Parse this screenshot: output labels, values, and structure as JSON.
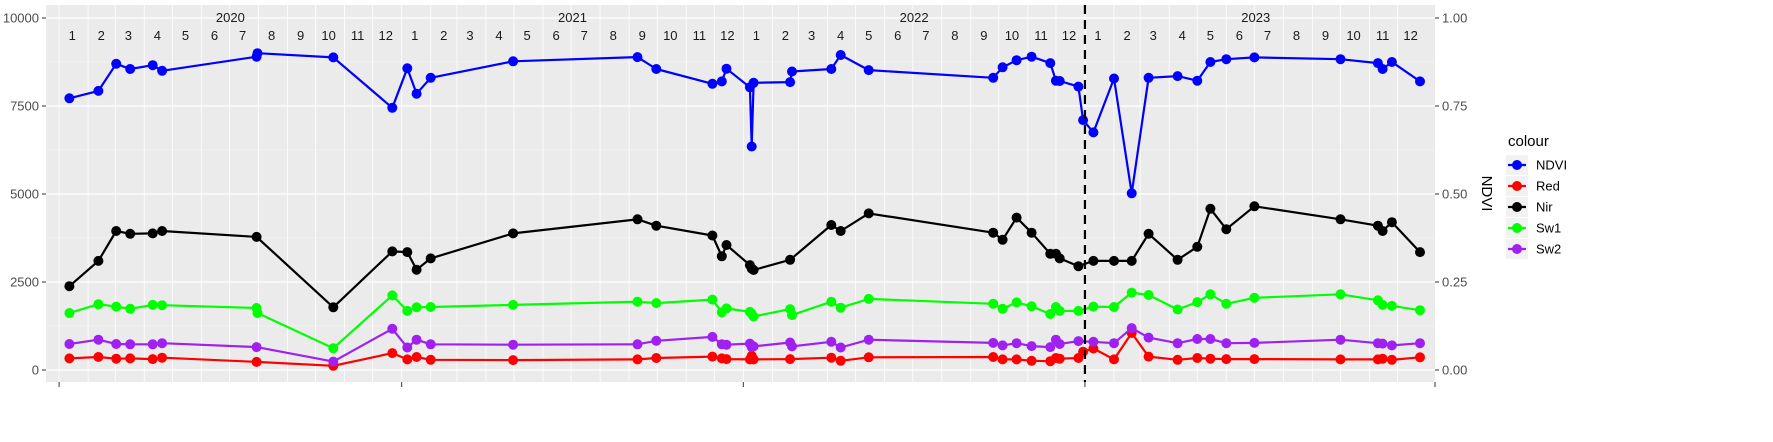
{
  "chart_data": {
    "type": "line",
    "title": "",
    "xlabel": "",
    "ylabel": "",
    "y2label": "NDVI",
    "ylim": [
      0,
      10000
    ],
    "y2lim": [
      0,
      1
    ],
    "yticks": [
      0,
      2500,
      5000,
      7500,
      10000
    ],
    "y2ticks": [
      "0.00",
      "0.25",
      "0.50",
      "0.75",
      "1.00"
    ],
    "xlim": [
      "2019-12-18",
      "2024-01-10"
    ],
    "grid": true,
    "legend_position": "right",
    "legend_title": "colour",
    "years": [
      {
        "label": "2020",
        "start": "2020-01-01",
        "end": "2021-01-01"
      },
      {
        "label": "2021",
        "start": "2021-01-01",
        "end": "2022-01-01"
      },
      {
        "label": "2022",
        "start": "2022-01-01",
        "end": "2023-01-01"
      },
      {
        "label": "2023",
        "start": "2023-01-01",
        "end": "2024-01-01"
      }
    ],
    "month_labels": [
      "1",
      "2",
      "3",
      "4",
      "5",
      "6",
      "7",
      "8",
      "9",
      "10",
      "11",
      "12"
    ],
    "vline": "2023-01-01",
    "series": [
      {
        "name": "NDVI",
        "color": "#0000ff",
        "axis": "right",
        "points": [
          [
            "2020-01-12",
            0.772
          ],
          [
            "2020-02-12",
            0.793
          ],
          [
            "2020-03-02",
            0.87
          ],
          [
            "2020-03-17",
            0.855
          ],
          [
            "2020-04-10",
            0.866
          ],
          [
            "2020-04-20",
            0.85
          ],
          [
            "2020-07-30",
            0.89
          ],
          [
            "2020-07-31",
            0.9
          ],
          [
            "2020-10-20",
            0.888
          ],
          [
            "2020-12-22",
            0.745
          ],
          [
            "2021-01-07",
            0.857
          ],
          [
            "2021-01-17",
            0.785
          ],
          [
            "2021-02-01",
            0.83
          ],
          [
            "2021-04-30",
            0.877
          ],
          [
            "2021-09-10",
            0.889
          ],
          [
            "2021-09-30",
            0.855
          ],
          [
            "2021-11-29",
            0.813
          ],
          [
            "2021-12-09",
            0.82
          ],
          [
            "2021-12-14",
            0.856
          ],
          [
            "2022-01-08",
            0.803
          ],
          [
            "2022-01-10",
            0.635
          ],
          [
            "2022-01-12",
            0.816
          ],
          [
            "2022-02-20",
            0.818
          ],
          [
            "2022-02-22",
            0.848
          ],
          [
            "2022-04-05",
            0.855
          ],
          [
            "2022-04-15",
            0.895
          ],
          [
            "2022-05-15",
            0.852
          ],
          [
            "2022-09-25",
            0.83
          ],
          [
            "2022-10-05",
            0.86
          ],
          [
            "2022-10-20",
            0.88
          ],
          [
            "2022-11-05",
            0.89
          ],
          [
            "2022-11-25",
            0.872
          ],
          [
            "2022-12-01",
            0.822
          ],
          [
            "2022-12-05",
            0.821
          ],
          [
            "2022-12-25",
            0.805
          ],
          [
            "2022-12-30",
            0.71
          ],
          [
            "2023-01-10",
            0.675
          ],
          [
            "2023-02-01",
            0.828
          ],
          [
            "2023-02-20",
            0.502
          ],
          [
            "2023-03-10",
            0.83
          ],
          [
            "2023-04-10",
            0.835
          ],
          [
            "2023-05-01",
            0.822
          ],
          [
            "2023-05-15",
            0.875
          ],
          [
            "2023-06-01",
            0.883
          ],
          [
            "2023-07-01",
            0.888
          ],
          [
            "2023-10-01",
            0.883
          ],
          [
            "2023-11-10",
            0.872
          ],
          [
            "2023-11-15",
            0.855
          ],
          [
            "2023-11-25",
            0.875
          ],
          [
            "2023-12-25",
            0.82
          ]
        ]
      },
      {
        "name": "Red",
        "color": "#ff0000",
        "axis": "left",
        "points": [
          [
            "2020-01-12",
            330
          ],
          [
            "2020-02-12",
            370
          ],
          [
            "2020-03-02",
            320
          ],
          [
            "2020-03-17",
            330
          ],
          [
            "2020-04-10",
            310
          ],
          [
            "2020-04-20",
            350
          ],
          [
            "2020-07-30",
            230
          ],
          [
            "2020-10-20",
            120
          ],
          [
            "2020-12-22",
            480
          ],
          [
            "2021-01-07",
            300
          ],
          [
            "2021-01-17",
            370
          ],
          [
            "2021-02-01",
            290
          ],
          [
            "2021-04-30",
            280
          ],
          [
            "2021-09-10",
            300
          ],
          [
            "2021-09-30",
            340
          ],
          [
            "2021-11-29",
            380
          ],
          [
            "2021-12-09",
            330
          ],
          [
            "2021-12-14",
            310
          ],
          [
            "2022-01-08",
            300
          ],
          [
            "2022-01-10",
            400
          ],
          [
            "2022-01-12",
            300
          ],
          [
            "2022-02-20",
            310
          ],
          [
            "2022-04-05",
            350
          ],
          [
            "2022-04-15",
            260
          ],
          [
            "2022-05-15",
            360
          ],
          [
            "2022-09-25",
            370
          ],
          [
            "2022-10-05",
            300
          ],
          [
            "2022-10-20",
            300
          ],
          [
            "2022-11-05",
            260
          ],
          [
            "2022-11-25",
            250
          ],
          [
            "2022-12-01",
            340
          ],
          [
            "2022-12-05",
            320
          ],
          [
            "2022-12-25",
            340
          ],
          [
            "2022-12-30",
            520
          ],
          [
            "2023-01-10",
            610
          ],
          [
            "2023-02-01",
            300
          ],
          [
            "2023-02-20",
            1050
          ],
          [
            "2023-03-10",
            380
          ],
          [
            "2023-04-10",
            290
          ],
          [
            "2023-05-01",
            340
          ],
          [
            "2023-05-15",
            320
          ],
          [
            "2023-06-01",
            310
          ],
          [
            "2023-07-01",
            310
          ],
          [
            "2023-10-01",
            300
          ],
          [
            "2023-11-10",
            300
          ],
          [
            "2023-11-15",
            320
          ],
          [
            "2023-11-25",
            290
          ],
          [
            "2023-12-25",
            360
          ]
        ]
      },
      {
        "name": "Nir",
        "color": "#000000",
        "axis": "left",
        "points": [
          [
            "2020-01-12",
            2380
          ],
          [
            "2020-02-12",
            3100
          ],
          [
            "2020-03-02",
            3950
          ],
          [
            "2020-03-17",
            3870
          ],
          [
            "2020-04-10",
            3880
          ],
          [
            "2020-04-20",
            3950
          ],
          [
            "2020-07-30",
            3780
          ],
          [
            "2020-10-20",
            1780
          ],
          [
            "2020-12-22",
            3370
          ],
          [
            "2021-01-07",
            3350
          ],
          [
            "2021-01-17",
            2850
          ],
          [
            "2021-02-01",
            3170
          ],
          [
            "2021-04-30",
            3880
          ],
          [
            "2021-09-10",
            4280
          ],
          [
            "2021-09-30",
            4100
          ],
          [
            "2021-11-29",
            3820
          ],
          [
            "2021-12-09",
            3230
          ],
          [
            "2021-12-14",
            3550
          ],
          [
            "2022-01-08",
            2980
          ],
          [
            "2022-01-10",
            2880
          ],
          [
            "2022-01-12",
            2840
          ],
          [
            "2022-02-20",
            3130
          ],
          [
            "2022-04-05",
            4120
          ],
          [
            "2022-04-15",
            3950
          ],
          [
            "2022-05-15",
            4450
          ],
          [
            "2022-09-25",
            3900
          ],
          [
            "2022-10-05",
            3700
          ],
          [
            "2022-10-20",
            4330
          ],
          [
            "2022-11-05",
            3900
          ],
          [
            "2022-11-25",
            3300
          ],
          [
            "2022-12-01",
            3300
          ],
          [
            "2022-12-05",
            3170
          ],
          [
            "2022-12-25",
            2950
          ],
          [
            "2023-01-10",
            3100
          ],
          [
            "2023-02-01",
            3100
          ],
          [
            "2023-02-20",
            3100
          ],
          [
            "2023-03-10",
            3870
          ],
          [
            "2023-04-10",
            3130
          ],
          [
            "2023-05-01",
            3500
          ],
          [
            "2023-05-15",
            4580
          ],
          [
            "2023-06-01",
            4000
          ],
          [
            "2023-07-01",
            4650
          ],
          [
            "2023-10-01",
            4280
          ],
          [
            "2023-11-10",
            4100
          ],
          [
            "2023-11-15",
            3950
          ],
          [
            "2023-11-25",
            4200
          ],
          [
            "2023-12-25",
            3350
          ]
        ]
      },
      {
        "name": "Sw1",
        "color": "#00ff00",
        "axis": "left",
        "points": [
          [
            "2020-01-12",
            1620
          ],
          [
            "2020-02-12",
            1870
          ],
          [
            "2020-03-02",
            1800
          ],
          [
            "2020-03-17",
            1740
          ],
          [
            "2020-04-10",
            1850
          ],
          [
            "2020-04-20",
            1840
          ],
          [
            "2020-07-30",
            1760
          ],
          [
            "2020-07-31",
            1620
          ],
          [
            "2020-10-20",
            620
          ],
          [
            "2020-12-22",
            2120
          ],
          [
            "2021-01-07",
            1680
          ],
          [
            "2021-01-17",
            1780
          ],
          [
            "2021-02-01",
            1790
          ],
          [
            "2021-04-30",
            1850
          ],
          [
            "2021-09-10",
            1940
          ],
          [
            "2021-09-30",
            1900
          ],
          [
            "2021-11-29",
            2000
          ],
          [
            "2021-12-09",
            1640
          ],
          [
            "2021-12-14",
            1750
          ],
          [
            "2022-01-08",
            1650
          ],
          [
            "2022-01-10",
            1600
          ],
          [
            "2022-01-12",
            1520
          ],
          [
            "2022-02-20",
            1730
          ],
          [
            "2022-02-22",
            1560
          ],
          [
            "2022-04-05",
            1940
          ],
          [
            "2022-04-15",
            1770
          ],
          [
            "2022-05-15",
            2020
          ],
          [
            "2022-09-25",
            1880
          ],
          [
            "2022-10-05",
            1740
          ],
          [
            "2022-10-20",
            1920
          ],
          [
            "2022-11-05",
            1810
          ],
          [
            "2022-11-25",
            1590
          ],
          [
            "2022-12-01",
            1790
          ],
          [
            "2022-12-05",
            1680
          ],
          [
            "2022-12-25",
            1680
          ],
          [
            "2023-01-10",
            1800
          ],
          [
            "2023-02-01",
            1790
          ],
          [
            "2023-02-20",
            2200
          ],
          [
            "2023-03-10",
            2130
          ],
          [
            "2023-04-10",
            1720
          ],
          [
            "2023-05-01",
            1930
          ],
          [
            "2023-05-15",
            2150
          ],
          [
            "2023-06-01",
            1880
          ],
          [
            "2023-07-01",
            2050
          ],
          [
            "2023-10-01",
            2150
          ],
          [
            "2023-11-10",
            1980
          ],
          [
            "2023-11-15",
            1850
          ],
          [
            "2023-11-25",
            1820
          ],
          [
            "2023-12-25",
            1700
          ]
        ]
      },
      {
        "name": "Sw2",
        "color": "#a020f0",
        "axis": "left",
        "points": [
          [
            "2020-01-12",
            740
          ],
          [
            "2020-02-12",
            860
          ],
          [
            "2020-03-02",
            740
          ],
          [
            "2020-03-17",
            730
          ],
          [
            "2020-04-10",
            730
          ],
          [
            "2020-04-20",
            760
          ],
          [
            "2020-07-30",
            650
          ],
          [
            "2020-10-20",
            240
          ],
          [
            "2020-12-22",
            1170
          ],
          [
            "2021-01-07",
            640
          ],
          [
            "2021-01-17",
            860
          ],
          [
            "2021-02-01",
            730
          ],
          [
            "2021-04-30",
            720
          ],
          [
            "2021-09-10",
            730
          ],
          [
            "2021-09-30",
            830
          ],
          [
            "2021-11-29",
            940
          ],
          [
            "2021-12-09",
            730
          ],
          [
            "2021-12-14",
            720
          ],
          [
            "2022-01-08",
            750
          ],
          [
            "2022-01-10",
            650
          ],
          [
            "2022-01-12",
            670
          ],
          [
            "2022-02-20",
            780
          ],
          [
            "2022-02-22",
            670
          ],
          [
            "2022-04-05",
            800
          ],
          [
            "2022-04-15",
            640
          ],
          [
            "2022-05-15",
            860
          ],
          [
            "2022-09-25",
            770
          ],
          [
            "2022-10-05",
            700
          ],
          [
            "2022-10-20",
            760
          ],
          [
            "2022-11-05",
            680
          ],
          [
            "2022-11-25",
            650
          ],
          [
            "2022-12-01",
            860
          ],
          [
            "2022-12-05",
            740
          ],
          [
            "2022-12-25",
            820
          ],
          [
            "2023-01-10",
            800
          ],
          [
            "2023-02-01",
            760
          ],
          [
            "2023-02-20",
            1190
          ],
          [
            "2023-03-10",
            920
          ],
          [
            "2023-04-10",
            760
          ],
          [
            "2023-05-01",
            880
          ],
          [
            "2023-05-15",
            880
          ],
          [
            "2023-06-01",
            760
          ],
          [
            "2023-07-01",
            770
          ],
          [
            "2023-10-01",
            860
          ],
          [
            "2023-11-10",
            760
          ],
          [
            "2023-11-15",
            750
          ],
          [
            "2023-11-25",
            700
          ],
          [
            "2023-12-25",
            760
          ]
        ]
      }
    ]
  }
}
